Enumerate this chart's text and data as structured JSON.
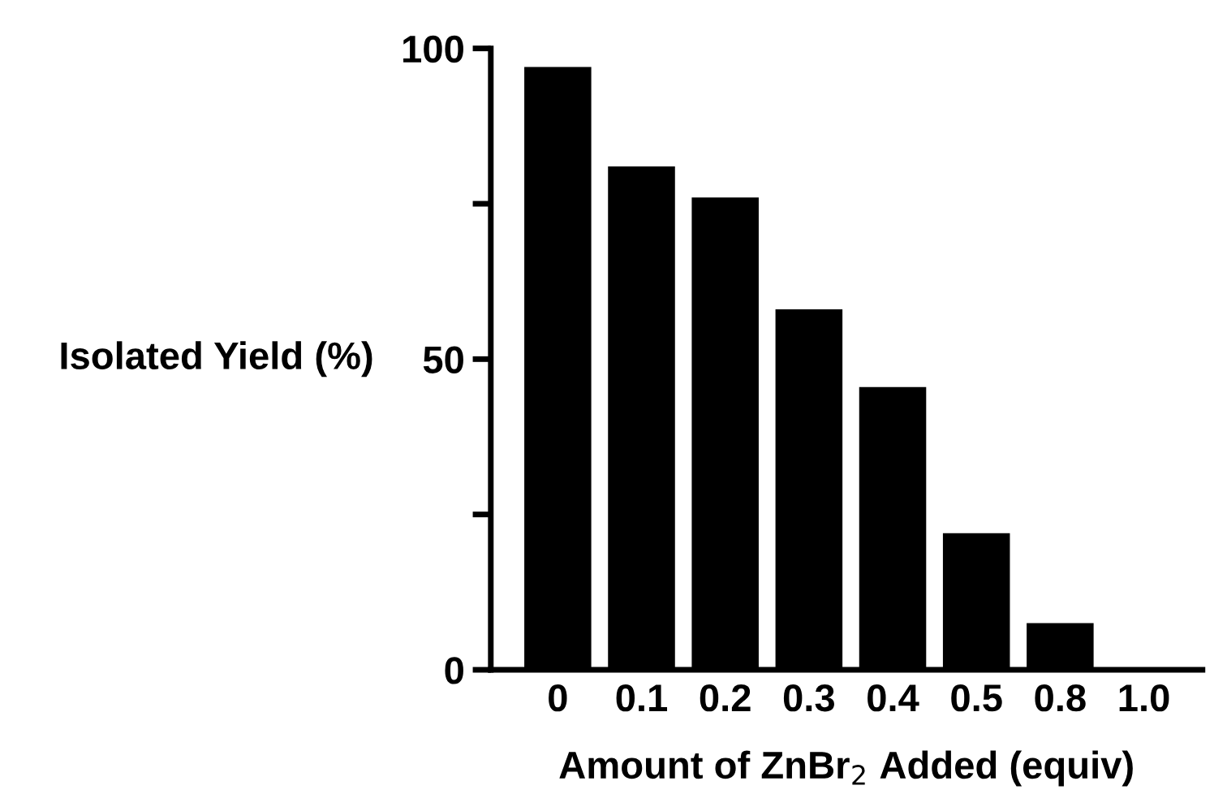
{
  "chart_data": {
    "type": "bar",
    "xlabel": "Amount of ZnBr$_{2}$ Added (equiv)",
    "ylabel": "Isolated Yield (%)",
    "categories": [
      "0",
      "0.1",
      "0.2",
      "0.3",
      "0.4",
      "0.5",
      "0.8",
      "1.0"
    ],
    "values": [
      97,
      81,
      76,
      58,
      45.5,
      22,
      7.5,
      null
    ],
    "color": "#000000",
    "ylim": [
      0,
      100
    ],
    "yticks": [
      0,
      {
        "value": 25,
        "label": null
      },
      50,
      {
        "value": 75,
        "label": null
      },
      100
    ],
    "grid": false
  }
}
